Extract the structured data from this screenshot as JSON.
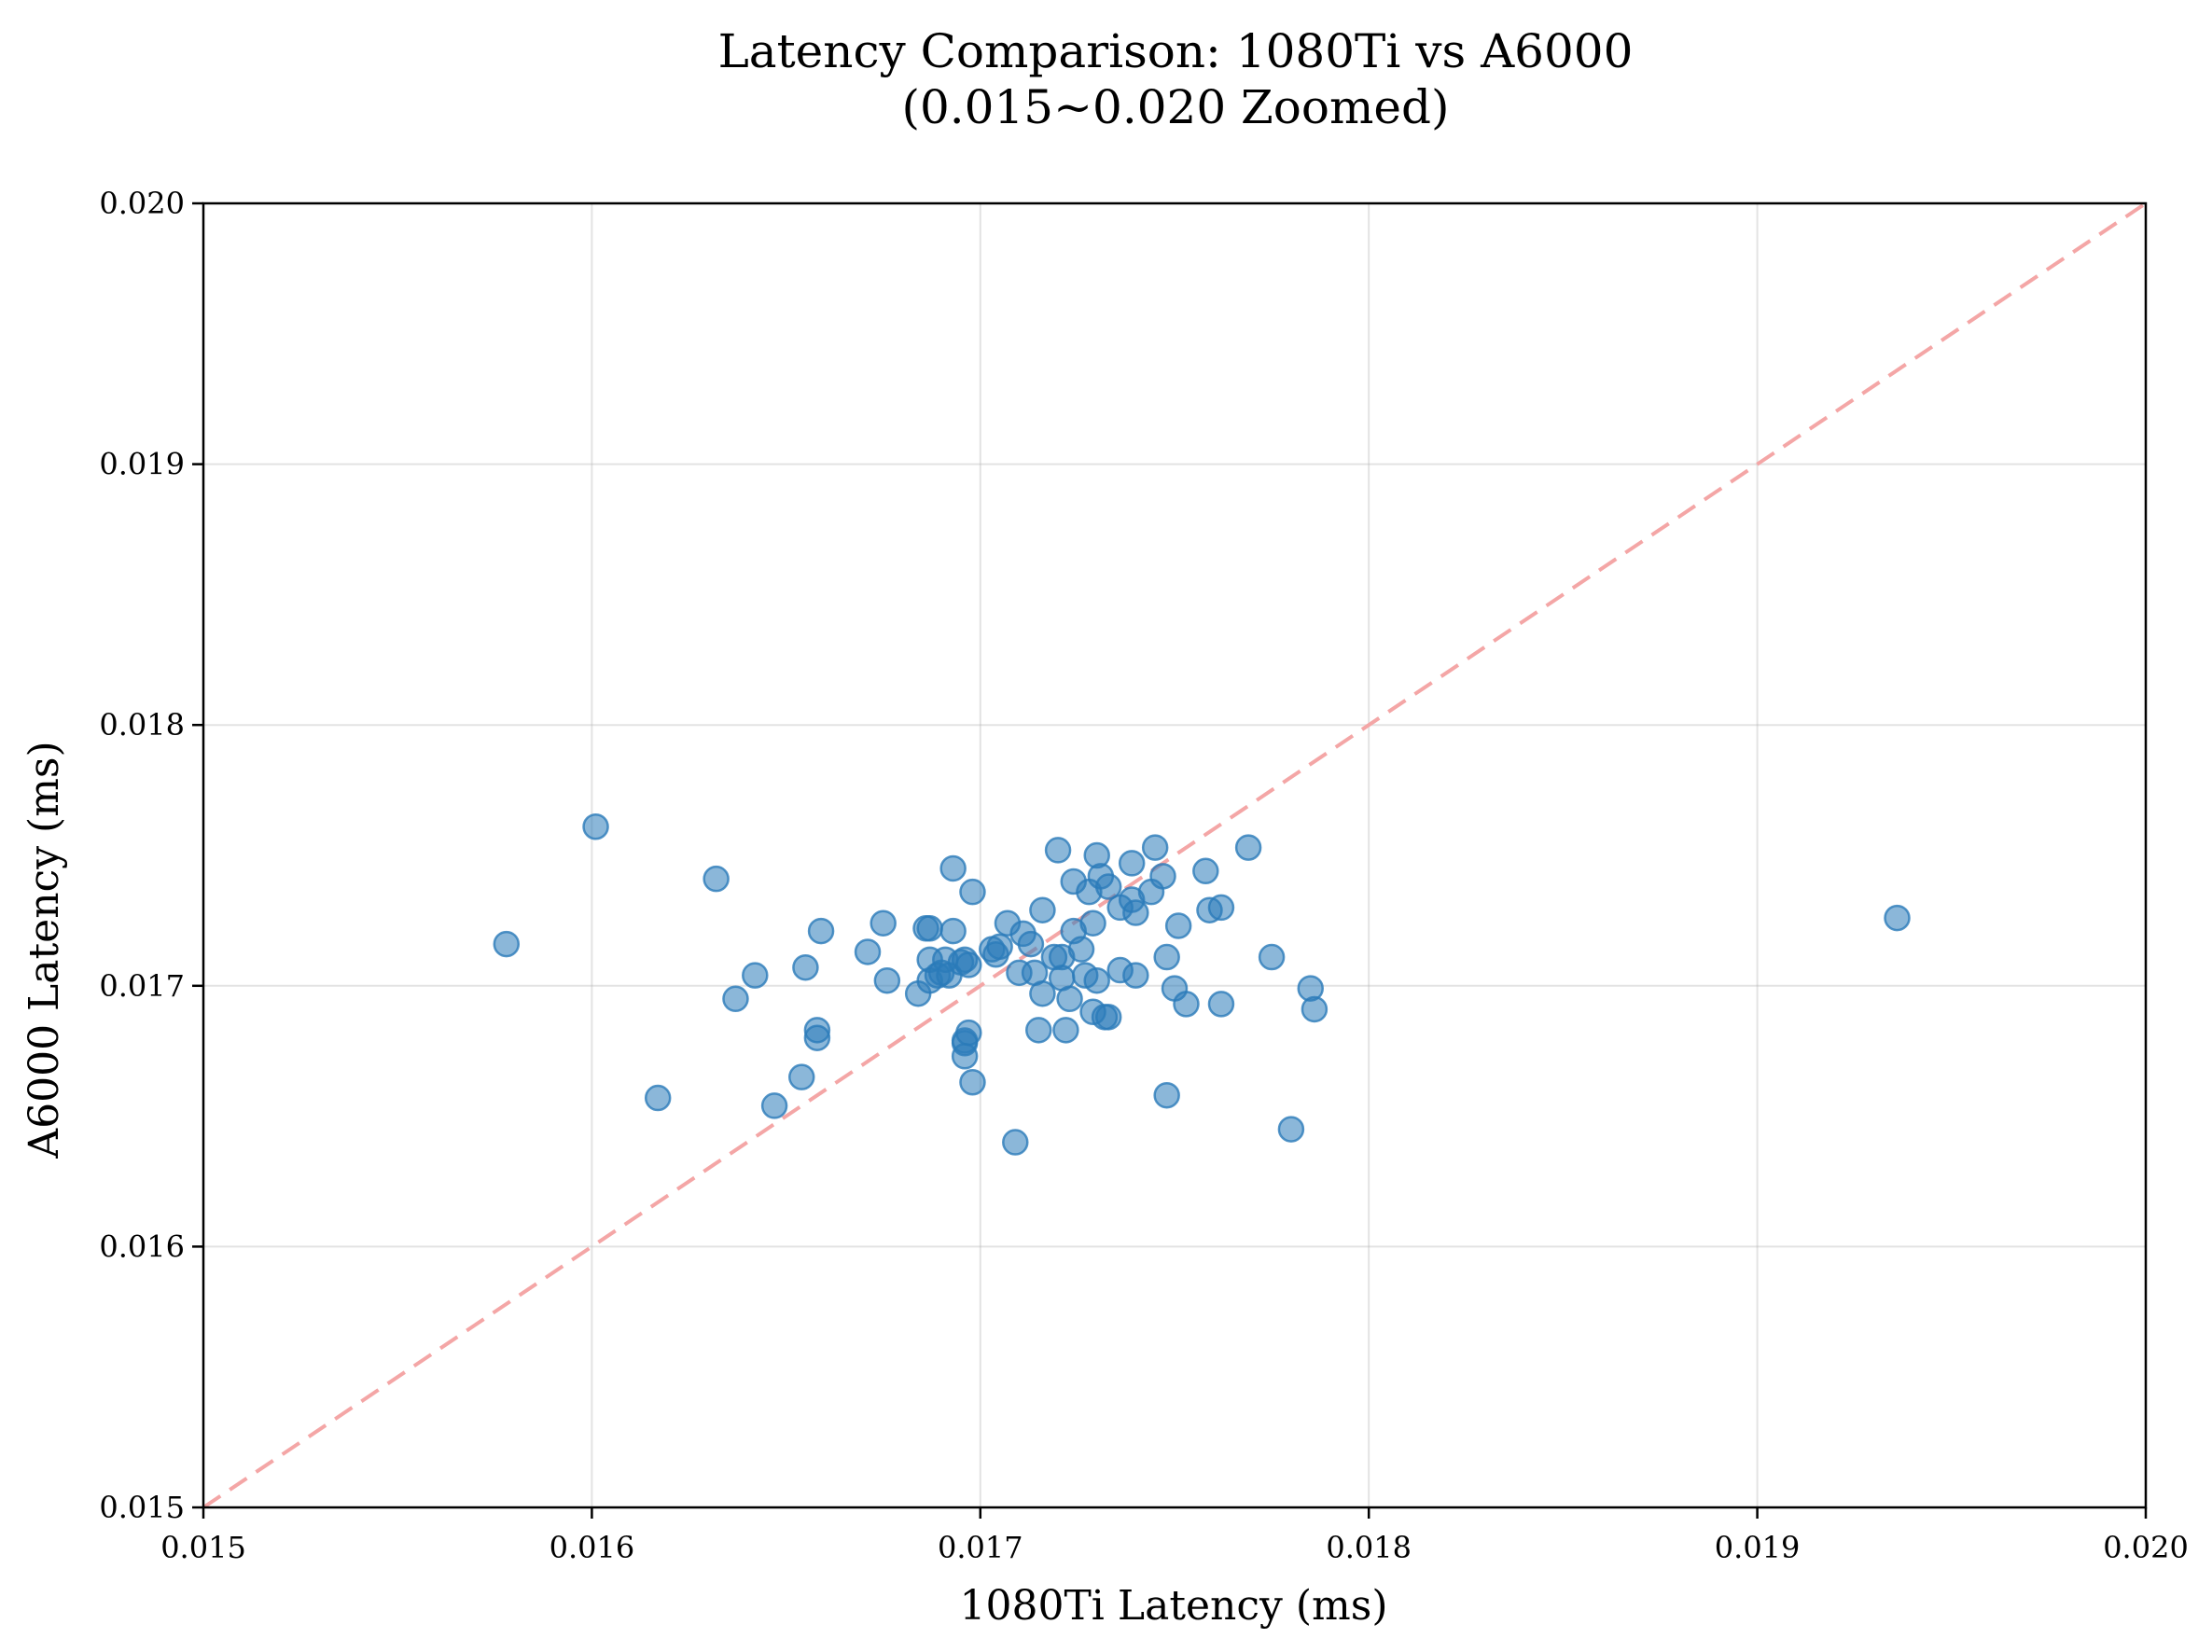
{
  "chart_data": {
    "type": "scatter",
    "title": "Latency Comparison: 1080Ti vs A6000",
    "subtitle": "(0.015~0.020 Zoomed)",
    "xlabel": "1080Ti Latency (ms)",
    "ylabel": "A6000 Latency (ms)",
    "xlim": [
      0.015,
      0.02
    ],
    "ylim": [
      0.015,
      0.02
    ],
    "xticks": [
      "0.015",
      "0.016",
      "0.017",
      "0.018",
      "0.019",
      "0.020"
    ],
    "yticks": [
      "0.015",
      "0.016",
      "0.017",
      "0.018",
      "0.019",
      "0.020"
    ],
    "grid": true,
    "reference_line": {
      "style": "dashed",
      "from": [
        0.015,
        0.015
      ],
      "to": [
        0.02,
        0.02
      ],
      "color": "#f4a6a6"
    },
    "point_color": "#2b7bb9",
    "series": [
      {
        "points": [
          [
            0.01578,
            0.01716
          ],
          [
            0.01601,
            0.01761
          ],
          [
            0.01617,
            0.01657
          ],
          [
            0.01632,
            0.01741
          ],
          [
            0.01637,
            0.01695
          ],
          [
            0.01642,
            0.01704
          ],
          [
            0.01647,
            0.01654
          ],
          [
            0.01654,
            0.01665
          ],
          [
            0.01655,
            0.01707
          ],
          [
            0.01658,
            0.01683
          ],
          [
            0.01658,
            0.0168
          ],
          [
            0.01659,
            0.01721
          ],
          [
            0.01671,
            0.01713
          ],
          [
            0.01675,
            0.01724
          ],
          [
            0.01676,
            0.01702
          ],
          [
            0.01684,
            0.01697
          ],
          [
            0.01686,
            0.01722
          ],
          [
            0.01687,
            0.01722
          ],
          [
            0.01687,
            0.01702
          ],
          [
            0.01687,
            0.0171
          ],
          [
            0.01689,
            0.01704
          ],
          [
            0.0169,
            0.01705
          ],
          [
            0.01691,
            0.0171
          ],
          [
            0.01692,
            0.01704
          ],
          [
            0.01693,
            0.01745
          ],
          [
            0.01693,
            0.01721
          ],
          [
            0.01695,
            0.01709
          ],
          [
            0.01696,
            0.0171
          ],
          [
            0.01696,
            0.01679
          ],
          [
            0.01696,
            0.01673
          ],
          [
            0.01696,
            0.01678
          ],
          [
            0.01697,
            0.01682
          ],
          [
            0.01697,
            0.01708
          ],
          [
            0.01698,
            0.01736
          ],
          [
            0.01698,
            0.01663
          ],
          [
            0.01703,
            0.01714
          ],
          [
            0.01704,
            0.01712
          ],
          [
            0.01705,
            0.01715
          ],
          [
            0.01707,
            0.01724
          ],
          [
            0.01709,
            0.0164
          ],
          [
            0.0171,
            0.01705
          ],
          [
            0.01711,
            0.0172
          ],
          [
            0.01713,
            0.01716
          ],
          [
            0.01714,
            0.01705
          ],
          [
            0.01715,
            0.01683
          ],
          [
            0.01716,
            0.01697
          ],
          [
            0.01716,
            0.01729
          ],
          [
            0.01719,
            0.01711
          ],
          [
            0.0172,
            0.01752
          ],
          [
            0.01721,
            0.01711
          ],
          [
            0.01721,
            0.01703
          ],
          [
            0.01722,
            0.01683
          ],
          [
            0.01723,
            0.01695
          ],
          [
            0.01724,
            0.01721
          ],
          [
            0.01724,
            0.0174
          ],
          [
            0.01726,
            0.01714
          ],
          [
            0.01727,
            0.01704
          ],
          [
            0.01728,
            0.01736
          ],
          [
            0.01729,
            0.0169
          ],
          [
            0.01729,
            0.01724
          ],
          [
            0.0173,
            0.0175
          ],
          [
            0.0173,
            0.01702
          ],
          [
            0.01731,
            0.01742
          ],
          [
            0.01732,
            0.01688
          ],
          [
            0.01733,
            0.01738
          ],
          [
            0.01733,
            0.01688
          ],
          [
            0.01736,
            0.0173
          ],
          [
            0.01736,
            0.01706
          ],
          [
            0.01739,
            0.01747
          ],
          [
            0.01739,
            0.01733
          ],
          [
            0.0174,
            0.01728
          ],
          [
            0.0174,
            0.01704
          ],
          [
            0.01744,
            0.01736
          ],
          [
            0.01745,
            0.01753
          ],
          [
            0.01747,
            0.01742
          ],
          [
            0.01748,
            0.01711
          ],
          [
            0.01748,
            0.01658
          ],
          [
            0.0175,
            0.01699
          ],
          [
            0.01751,
            0.01723
          ],
          [
            0.01753,
            0.01693
          ],
          [
            0.01758,
            0.01744
          ],
          [
            0.01759,
            0.01729
          ],
          [
            0.01762,
            0.0173
          ],
          [
            0.01762,
            0.01693
          ],
          [
            0.01769,
            0.01753
          ],
          [
            0.01775,
            0.01711
          ],
          [
            0.0178,
            0.01645
          ],
          [
            0.01785,
            0.01699
          ],
          [
            0.01786,
            0.01691
          ],
          [
            0.01936,
            0.01726
          ]
        ]
      }
    ]
  }
}
